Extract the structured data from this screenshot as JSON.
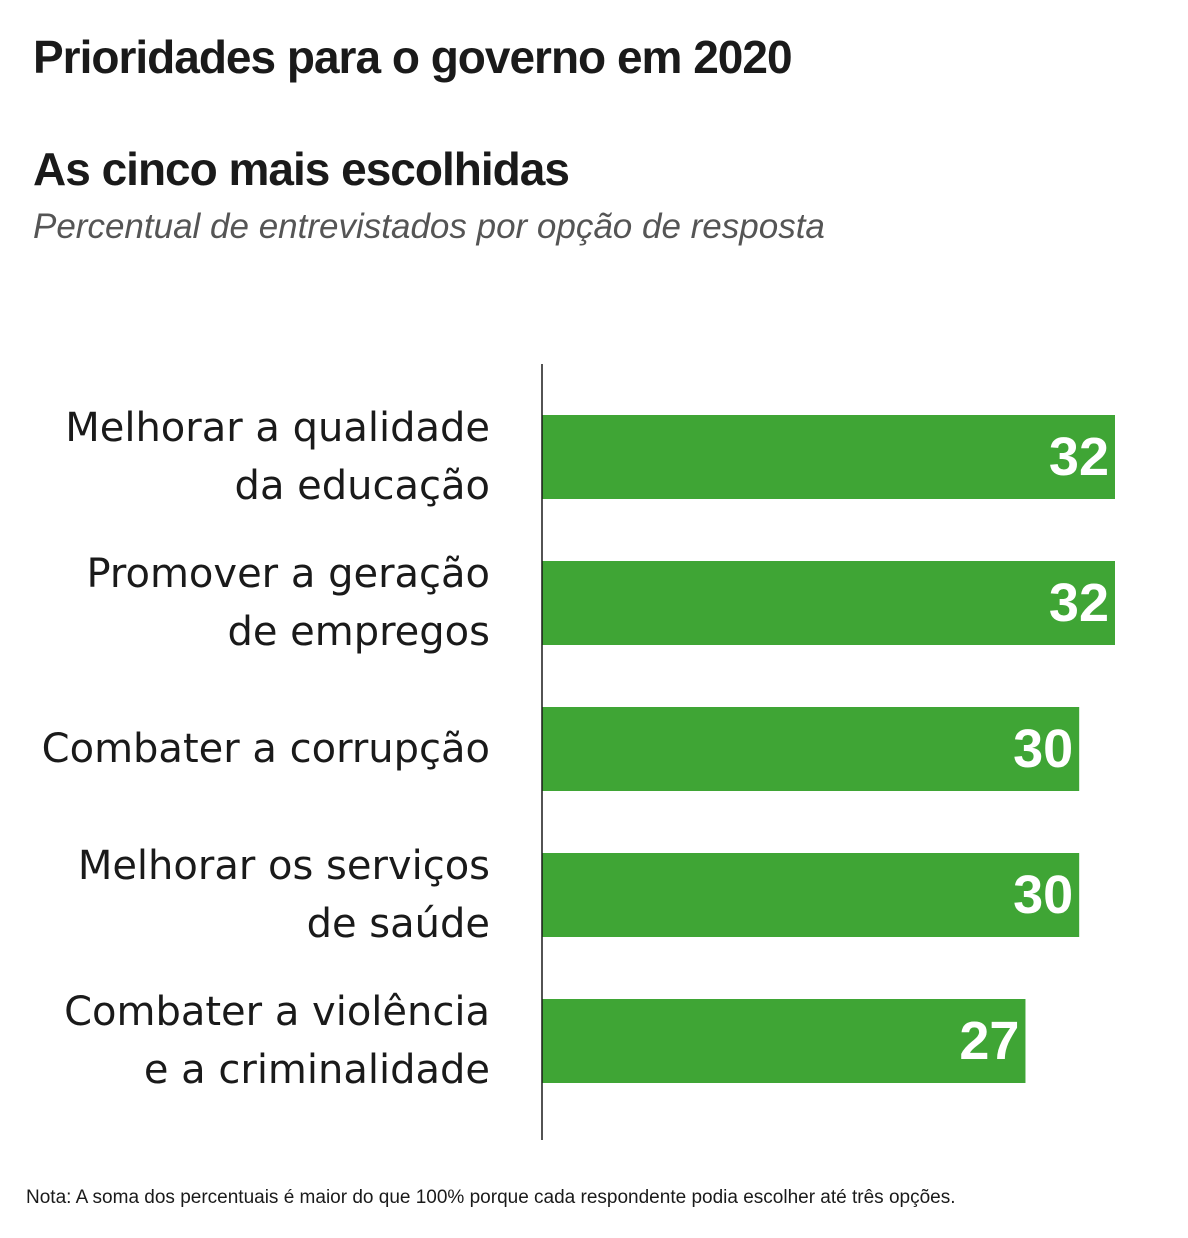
{
  "header": {
    "title": "Prioridades para o governo em 2020",
    "subtitle": "As cinco mais escolhidas",
    "caption": "Percentual de entrevistados por opção de resposta"
  },
  "colors": {
    "bar": "#3fa535",
    "axis": "#1a1a1a",
    "value_text": "#ffffff"
  },
  "chart_data": {
    "type": "bar",
    "orientation": "horizontal",
    "categories": [
      [
        "Melhorar a qualidade",
        "da educação"
      ],
      [
        "Promover a geração",
        "de empregos"
      ],
      [
        "Combater a corrupção"
      ],
      [
        "Melhorar os serviços",
        "de saúde"
      ],
      [
        "Combater a violência",
        "e a criminalidade"
      ]
    ],
    "values": [
      32,
      32,
      30,
      30,
      27
    ],
    "data_labels": [
      "32",
      "32",
      "30",
      "30",
      "27"
    ],
    "grid": false
  },
  "footer": {
    "note": "Nota: A soma dos percentuais é maior do que 100% porque cada respondente podia escolher até três opções."
  }
}
